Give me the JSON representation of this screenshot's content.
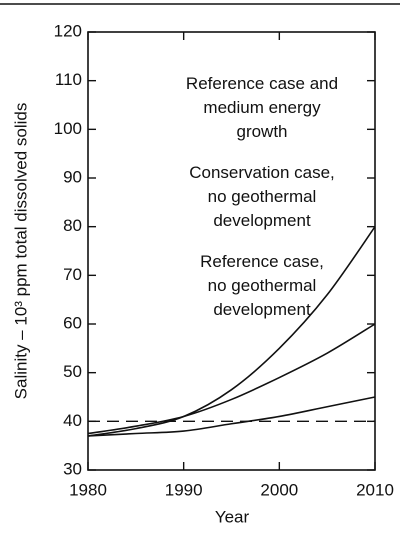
{
  "chart_data": {
    "type": "line",
    "x_label": "Year",
    "y_label": "Salinity – 10³ ppm total dissolved solids",
    "x": [
      1980,
      1985,
      1990,
      1995,
      2000,
      2005,
      2010
    ],
    "series": [
      {
        "name": "Reference case and\nmedium energy\ngrowth",
        "color": "#111111",
        "values": [
          37,
          38.5,
          41,
          46.5,
          55,
          66,
          80
        ]
      },
      {
        "name": "Conservation case,\nno geothermal\ndevelopment",
        "color": "#111111",
        "values": [
          37.5,
          39,
          41,
          44.5,
          49,
          54,
          60
        ]
      },
      {
        "name": "Reference case,\nno geothermal\ndevelopment",
        "color": "#111111",
        "values": [
          37,
          37.5,
          38,
          39.5,
          41,
          43,
          45
        ]
      }
    ],
    "reference_line": 40,
    "xlim": [
      1980,
      2010
    ],
    "xticks": [
      1980,
      1990,
      2000,
      2010
    ],
    "ylim": [
      30,
      120
    ],
    "yticks": [
      30,
      40,
      50,
      60,
      70,
      80,
      90,
      100,
      110,
      120
    ],
    "grid": false
  }
}
